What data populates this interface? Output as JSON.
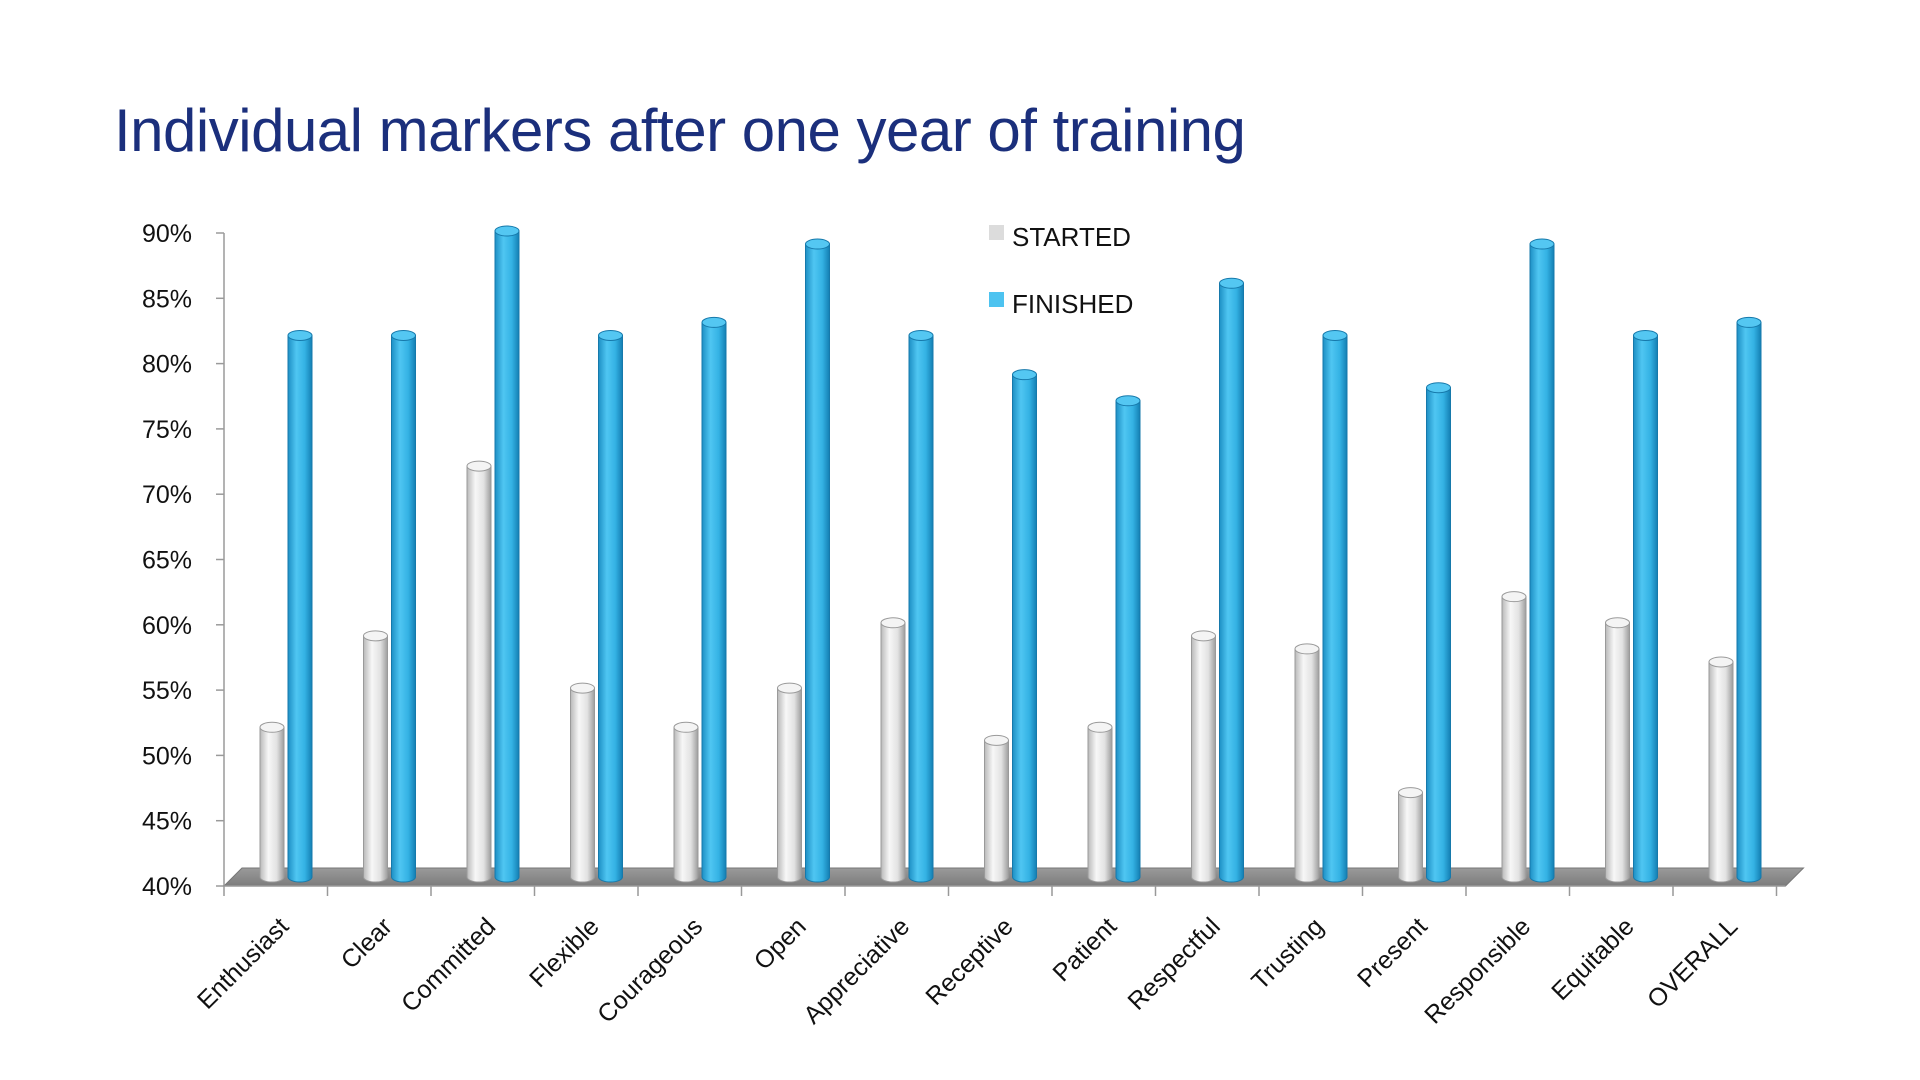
{
  "chart_data": {
    "type": "bar",
    "title": "Individual markers after one year of training",
    "xlabel": "",
    "ylabel": "",
    "ylim": [
      40,
      90
    ],
    "y_ticks": [
      "40%",
      "45%",
      "50%",
      "55%",
      "60%",
      "65%",
      "70%",
      "75%",
      "80%",
      "85%",
      "90%"
    ],
    "y_tick_values": [
      40,
      45,
      50,
      55,
      60,
      65,
      70,
      75,
      80,
      85,
      90
    ],
    "categories": [
      "Enthusiast",
      "Clear",
      "Committed",
      "Flexible",
      "Courageous",
      "Open",
      "Appreciative",
      "Receptive",
      "Patient",
      "Respectful",
      "Trusting",
      "Present",
      "Responsible",
      "Equitable",
      "OVERALL"
    ],
    "series": [
      {
        "name": "STARTED",
        "color": "#e4e4e4",
        "values": [
          52,
          59,
          72,
          55,
          52,
          55,
          60,
          51,
          52,
          59,
          58,
          47,
          62,
          60,
          57
        ]
      },
      {
        "name": "FINISHED",
        "color": "#3bb8e8",
        "values": [
          82,
          82,
          90,
          82,
          83,
          89,
          82,
          79,
          77,
          86,
          82,
          78,
          89,
          82,
          83
        ]
      }
    ],
    "legend_position": "top-center",
    "grid": false
  }
}
